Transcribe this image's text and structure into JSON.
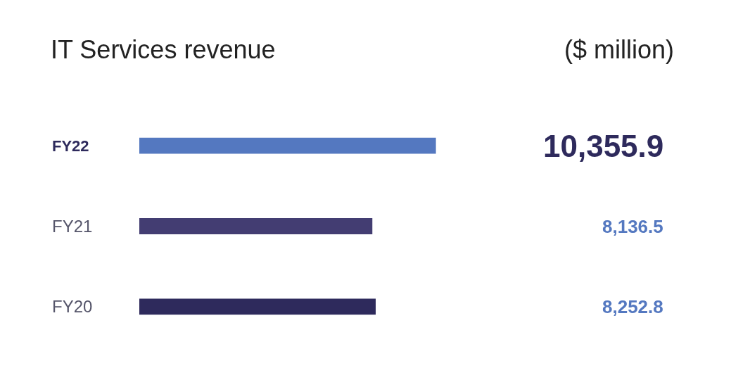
{
  "chart_data": {
    "type": "bar",
    "orientation": "horizontal",
    "title": "IT Services revenue",
    "subtitle": "($ million)",
    "categories": [
      "FY22",
      "FY21",
      "FY20"
    ],
    "values": [
      10355.9,
      8136.5,
      8252.8
    ],
    "colors": [
      "#5478c0",
      "#433d72",
      "#2e2a5c"
    ],
    "value_labels": [
      "10,355.9",
      "8,136.5",
      "8,252.8"
    ],
    "legend": false
  }
}
